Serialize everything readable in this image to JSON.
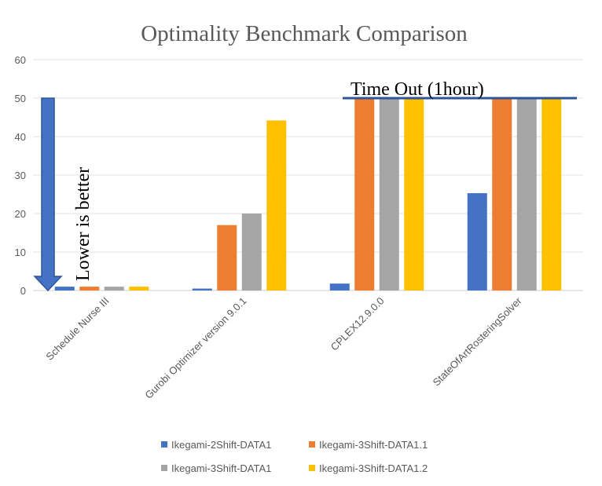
{
  "chart_data": {
    "type": "bar",
    "title": "Optimality Benchmark Comparison",
    "xlabel": "",
    "ylabel": "",
    "ylim": [
      0,
      60
    ],
    "yticks": [
      0,
      10,
      20,
      30,
      40,
      50,
      60
    ],
    "grid": true,
    "legend_placement": "bottom",
    "categories": [
      "Schedule Nurse III",
      "Gurobi Optimizer version 9.0.1",
      "CPLEX12.9.0.0",
      "StateOfArtRosteringSolver"
    ],
    "series": [
      {
        "name": "Ikegami-2Shift-DATA1",
        "color": "#4472C4",
        "values": [
          1,
          0.5,
          1.8,
          25.3
        ]
      },
      {
        "name": "Ikegami-3Shift-DATA1.1",
        "color": "#ED7D31",
        "values": [
          1,
          17,
          50,
          50
        ]
      },
      {
        "name": "Ikegami-3Shift-DATA1",
        "color": "#A5A5A5",
        "values": [
          1,
          20,
          50,
          50
        ]
      },
      {
        "name": "Ikegami-3Shift-DATA1.2",
        "color": "#FFC000",
        "values": [
          1,
          44.2,
          50,
          50
        ]
      }
    ],
    "annotations": {
      "timeout_label": "Time Out (1hour)",
      "timeout_value": 50,
      "arrow_label": "Lower is better",
      "arrow_from": 50,
      "arrow_to": 0
    }
  }
}
